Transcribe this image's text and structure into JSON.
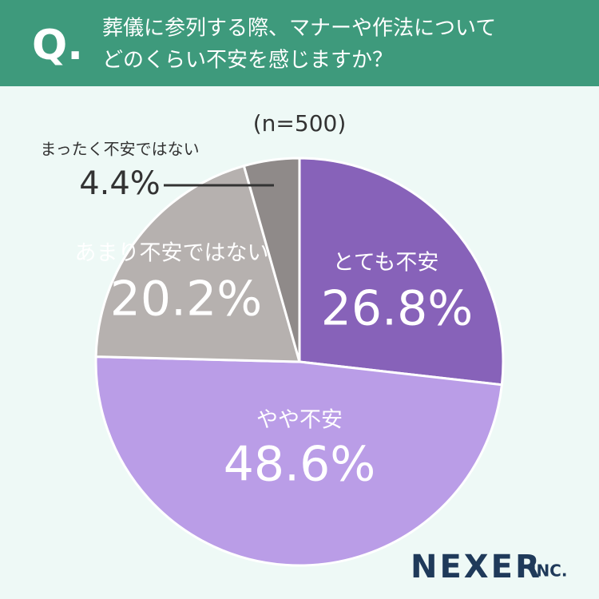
{
  "chart_data": {
    "type": "pie",
    "q_mark": "Q.",
    "title": [
      "葬儀に参列する際、マナーや作法について",
      "どのくらい不安を感じますか？"
    ],
    "subtitle": "(n=500)",
    "categories": [
      "とても不安",
      "やや不安",
      "あまり不安ではない",
      "まったく不安ではない"
    ],
    "values": [
      26.8,
      48.6,
      20.2,
      4.4
    ],
    "value_labels": [
      "26.8%",
      "48.6%",
      "20.2%",
      "4.4%"
    ],
    "colors": [
      "#8762b9",
      "#ba9de7",
      "#b6b1af",
      "#8f8a89"
    ],
    "brand": "NEXER",
    "brand_suffix": "INC."
  }
}
